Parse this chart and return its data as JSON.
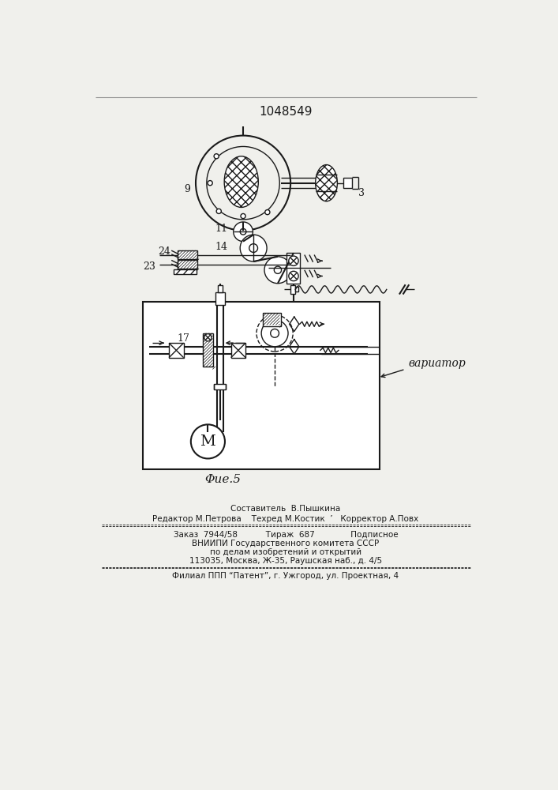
{
  "patent_number": "1048549",
  "fig_label": "Φuе.5",
  "background_color": "#f0f0ec",
  "line_color": "#1a1a1a",
  "label_9": "9",
  "label_3": "3",
  "label_11": "11",
  "label_14": "14",
  "label_24": "24",
  "label_23": "23",
  "label_17": "17",
  "label_variator": "вариатор",
  "label_M": "M",
  "footer_line1": "Составитель  В.Пышкина",
  "footer_line2": "Редактор М.Петрова    Техред М.Костик  ’   Корректор А.Повх",
  "footer_line3": "Заказ  7944/58           Тираж  687              Подписное",
  "footer_line4": "ВНИИПИ Государственного комитета СССР",
  "footer_line5": "по делам изобретений и открытий",
  "footer_line6": "113035, Москва, Ж-35, Раушская наб., д. 4/5",
  "footer_line7": "Филиал ППП “Патент”, г. Ужгород, ул. Проектная, 4"
}
